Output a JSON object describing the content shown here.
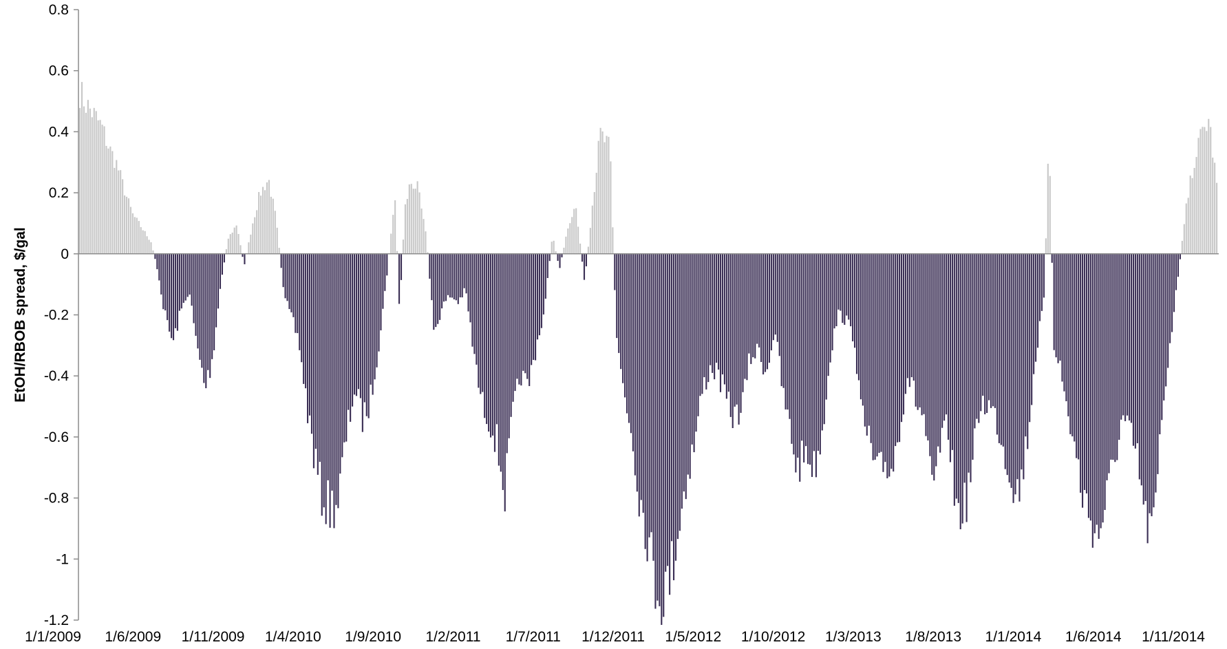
{
  "chart_data": {
    "type": "bar",
    "title": "",
    "xlabel": "",
    "ylabel": "EtOH/RBOB spread, $/gal",
    "ylim": [
      -1.2,
      0.8
    ],
    "yticks": [
      0.8,
      0.6,
      0.4,
      0.2,
      0,
      -0.2,
      -0.4,
      -0.6,
      -0.8,
      -1,
      -1.2
    ],
    "ytick_labels": [
      "0.8",
      "0.6",
      "0.4",
      "0.2",
      "0",
      "-0.2",
      "-0.4",
      "-0.6",
      "-0.8",
      "-1",
      "-1.2"
    ],
    "x_start": "1/1/2009",
    "x_end": "1/1/2015",
    "xtick_labels": [
      "1/1/2009",
      "1/6/2009",
      "1/11/2009",
      "1/4/2010",
      "1/9/2010",
      "1/2/2011",
      "1/7/2011",
      "1/12/2011",
      "1/5/2012",
      "1/10/2012",
      "1/3/2013",
      "1/8/2013",
      "1/1/2014",
      "1/6/2014",
      "1/11/2014"
    ],
    "colors": {
      "positive": "#c8c8c8",
      "negative": "#3b2f55",
      "axis": "#8c8c8c"
    },
    "profile": [
      [
        "1/1/2009",
        0.55
      ],
      [
        "15/1/2009",
        0.5
      ],
      [
        "1/2/2009",
        0.46
      ],
      [
        "15/2/2009",
        0.42
      ],
      [
        "1/3/2009",
        0.35
      ],
      [
        "15/3/2009",
        0.3
      ],
      [
        "1/4/2009",
        0.2
      ],
      [
        "15/4/2009",
        0.13
      ],
      [
        "1/5/2009",
        0.09
      ],
      [
        "20/5/2009",
        0.04
      ],
      [
        "1/6/2009",
        -0.05
      ],
      [
        "15/6/2009",
        -0.2
      ],
      [
        "1/7/2009",
        -0.3
      ],
      [
        "15/7/2009",
        -0.2
      ],
      [
        "1/8/2009",
        -0.12
      ],
      [
        "15/8/2009",
        -0.3
      ],
      [
        "1/9/2009",
        -0.45
      ],
      [
        "15/9/2009",
        -0.35
      ],
      [
        "1/10/2009",
        -0.1
      ],
      [
        "15/10/2009",
        0.05
      ],
      [
        "1/11/2009",
        0.1
      ],
      [
        "15/11/2009",
        -0.04
      ],
      [
        "1/12/2009",
        0.1
      ],
      [
        "15/12/2009",
        0.2
      ],
      [
        "1/1/2010",
        0.25
      ],
      [
        "15/1/2010",
        0.12
      ],
      [
        "1/2/2010",
        -0.15
      ],
      [
        "15/2/2010",
        -0.22
      ],
      [
        "1/3/2010",
        -0.3
      ],
      [
        "15/3/2010",
        -0.5
      ],
      [
        "1/4/2010",
        -0.7
      ],
      [
        "15/4/2010",
        -0.82
      ],
      [
        "1/5/2010",
        -0.85
      ],
      [
        "15/5/2010",
        -0.82
      ],
      [
        "1/6/2010",
        -0.6
      ],
      [
        "15/6/2010",
        -0.45
      ],
      [
        "1/7/2010",
        -0.55
      ],
      [
        "15/7/2010",
        -0.5
      ],
      [
        "1/8/2010",
        -0.3
      ],
      [
        "15/8/2010",
        -0.1
      ],
      [
        "1/9/2010",
        0.2
      ],
      [
        "10/9/2010",
        -0.2
      ],
      [
        "20/9/2010",
        0.15
      ],
      [
        "1/10/2010",
        0.24
      ],
      [
        "15/10/2010",
        0.22
      ],
      [
        "1/11/2010",
        0.05
      ],
      [
        "15/11/2010",
        -0.26
      ],
      [
        "1/12/2010",
        -0.18
      ],
      [
        "15/12/2010",
        -0.14
      ],
      [
        "1/1/2011",
        -0.16
      ],
      [
        "15/1/2011",
        -0.12
      ],
      [
        "1/2/2011",
        -0.35
      ],
      [
        "15/2/2011",
        -0.5
      ],
      [
        "1/3/2011",
        -0.55
      ],
      [
        "15/3/2011",
        -0.62
      ],
      [
        "1/4/2011",
        -0.8
      ],
      [
        "15/4/2011",
        -0.55
      ],
      [
        "1/5/2011",
        -0.4
      ],
      [
        "15/5/2011",
        -0.45
      ],
      [
        "1/6/2011",
        -0.3
      ],
      [
        "15/6/2011",
        -0.2
      ],
      [
        "1/7/2011",
        0.06
      ],
      [
        "15/7/2011",
        -0.05
      ],
      [
        "1/8/2011",
        0.1
      ],
      [
        "15/8/2011",
        0.16
      ],
      [
        "1/9/2011",
        -0.1
      ],
      [
        "15/9/2011",
        0.15
      ],
      [
        "1/10/2011",
        0.4
      ],
      [
        "20/10/2011",
        0.35
      ],
      [
        "1/11/2011",
        -0.28
      ],
      [
        "15/11/2011",
        -0.45
      ],
      [
        "1/12/2011",
        -0.6
      ],
      [
        "15/12/2011",
        -0.8
      ],
      [
        "1/1/2012",
        -0.95
      ],
      [
        "15/1/2012",
        -1.1
      ],
      [
        "1/2/2012",
        -1.15
      ],
      [
        "15/2/2012",
        -1.05
      ],
      [
        "1/3/2012",
        -0.9
      ],
      [
        "15/3/2012",
        -0.75
      ],
      [
        "1/4/2012",
        -0.62
      ],
      [
        "15/4/2012",
        -0.45
      ],
      [
        "1/5/2012",
        -0.38
      ],
      [
        "15/5/2012",
        -0.4
      ],
      [
        "1/6/2012",
        -0.5
      ],
      [
        "15/6/2012",
        -0.55
      ],
      [
        "1/7/2012",
        -0.5
      ],
      [
        "15/7/2012",
        -0.35
      ],
      [
        "1/8/2012",
        -0.32
      ],
      [
        "15/8/2012",
        -0.4
      ],
      [
        "1/9/2012",
        -0.25
      ],
      [
        "15/9/2012",
        -0.45
      ],
      [
        "1/10/2012",
        -0.6
      ],
      [
        "15/10/2012",
        -0.72
      ],
      [
        "1/11/2012",
        -0.65
      ],
      [
        "15/11/2012",
        -0.72
      ],
      [
        "1/12/2012",
        -0.6
      ],
      [
        "15/12/2012",
        -0.35
      ],
      [
        "1/1/2013",
        -0.2
      ],
      [
        "15/1/2013",
        -0.22
      ],
      [
        "1/2/2013",
        -0.28
      ],
      [
        "15/2/2013",
        -0.55
      ],
      [
        "1/3/2013",
        -0.62
      ],
      [
        "15/3/2013",
        -0.75
      ],
      [
        "1/4/2013",
        -0.7
      ],
      [
        "15/4/2013",
        -0.72
      ],
      [
        "1/5/2013",
        -0.55
      ],
      [
        "15/5/2013",
        -0.4
      ],
      [
        "1/6/2013",
        -0.5
      ],
      [
        "15/6/2013",
        -0.55
      ],
      [
        "1/7/2013",
        -0.82
      ],
      [
        "15/7/2013",
        -0.65
      ],
      [
        "1/8/2013",
        -0.58
      ],
      [
        "15/8/2013",
        -0.85
      ],
      [
        "1/9/2013",
        -0.85
      ],
      [
        "15/9/2013",
        -0.72
      ],
      [
        "1/10/2013",
        -0.5
      ],
      [
        "15/10/2013",
        -0.5
      ],
      [
        "1/11/2013",
        -0.55
      ],
      [
        "15/11/2013",
        -0.65
      ],
      [
        "1/12/2013",
        -0.75
      ],
      [
        "15/12/2013",
        -0.8
      ],
      [
        "1/1/2014",
        -0.6
      ],
      [
        "15/1/2014",
        -0.35
      ],
      [
        "1/2/2014",
        -0.15
      ],
      [
        "10/2/2014",
        0.4
      ],
      [
        "20/2/2014",
        -0.3
      ],
      [
        "1/3/2014",
        -0.35
      ],
      [
        "15/3/2014",
        -0.5
      ],
      [
        "1/4/2014",
        -0.65
      ],
      [
        "15/4/2014",
        -0.8
      ],
      [
        "1/5/2014",
        -0.88
      ],
      [
        "15/5/2014",
        -0.95
      ],
      [
        "1/6/2014",
        -0.82
      ],
      [
        "15/6/2014",
        -0.7
      ],
      [
        "1/7/2014",
        -0.55
      ],
      [
        "15/7/2014",
        -0.6
      ],
      [
        "1/8/2014",
        -0.7
      ],
      [
        "15/8/2014",
        -0.9
      ],
      [
        "1/9/2014",
        -0.92
      ],
      [
        "15/9/2014",
        -0.55
      ],
      [
        "1/10/2014",
        -0.3
      ],
      [
        "15/10/2014",
        -0.1
      ],
      [
        "1/11/2014",
        0.15
      ],
      [
        "15/11/2014",
        0.3
      ],
      [
        "1/12/2014",
        0.4
      ],
      [
        "15/12/2014",
        0.45
      ],
      [
        "1/1/2015",
        0.2
      ]
    ]
  }
}
